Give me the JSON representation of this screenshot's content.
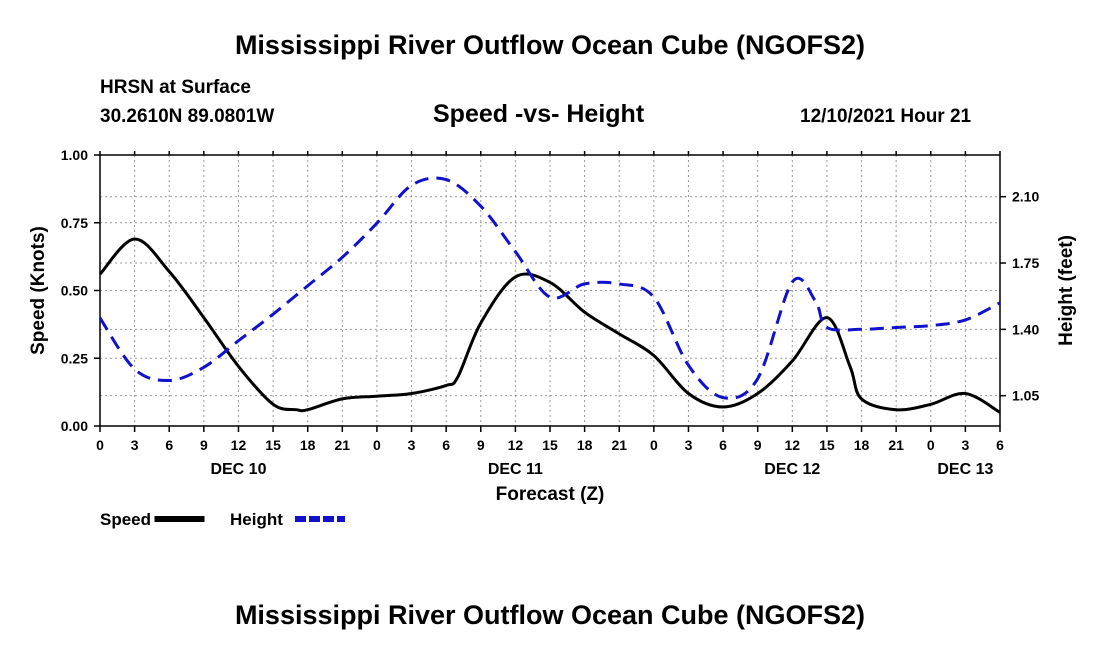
{
  "header": {
    "main_title": "Mississippi River Outflow Ocean Cube (NGOFS2)",
    "station": "HRSN at Surface",
    "coords": "30.2610N  89.0801W",
    "chart_title": "Speed -vs- Height",
    "datetime": "12/10/2021 Hour 21",
    "bottom_title": "Mississippi River Outflow Ocean Cube (NGOFS2)"
  },
  "chart_data": {
    "type": "line",
    "title": "Speed -vs- Height",
    "xlabel": "Forecast (Z)",
    "ylabel": "Speed (Knots)",
    "y2label": "Height (feet)",
    "xlim": [
      0,
      78
    ],
    "ylim": [
      0,
      1
    ],
    "y2lim": [
      0.89,
      2.32
    ],
    "x_ticks": [
      0,
      3,
      6,
      9,
      12,
      15,
      18,
      21,
      24,
      27,
      30,
      33,
      36,
      39,
      42,
      45,
      48,
      51,
      54,
      57,
      60,
      63,
      66,
      69,
      72,
      75,
      78
    ],
    "x_tick_labels": [
      "0",
      "3",
      "6",
      "9",
      "12",
      "15",
      "18",
      "21",
      "0",
      "3",
      "6",
      "9",
      "12",
      "15",
      "18",
      "21",
      "0",
      "3",
      "6",
      "9",
      "12",
      "15",
      "18",
      "21",
      "0",
      "3",
      "6"
    ],
    "y_ticks": [
      0,
      0.25,
      0.5,
      0.75,
      1.0
    ],
    "y_tick_labels": [
      "0.00",
      "0.25",
      "0.50",
      "0.75",
      "1.00"
    ],
    "y2_ticks": [
      1.05,
      1.4,
      1.75,
      2.1
    ],
    "y2_tick_labels": [
      "1.05",
      "1.40",
      "1.75",
      "2.10"
    ],
    "day_labels": [
      {
        "x": 12,
        "label": "DEC 10"
      },
      {
        "x": 36,
        "label": "DEC 11"
      },
      {
        "x": 60,
        "label": "DEC 12"
      },
      {
        "x": 75,
        "label": "DEC 13"
      }
    ],
    "grid": true,
    "legend": [
      {
        "name": "Speed",
        "color": "#000000",
        "style": "solid"
      },
      {
        "name": "Height",
        "color": "#1111cc",
        "style": "dashed"
      }
    ],
    "series": [
      {
        "name": "Speed",
        "axis": "left",
        "color": "#000000",
        "x": [
          0,
          3,
          6,
          9,
          12,
          15,
          17,
          18,
          21,
          24,
          27,
          30,
          31,
          33,
          36,
          39,
          42,
          45,
          48,
          51,
          54,
          57,
          60,
          63,
          65,
          66,
          69,
          72,
          75,
          78
        ],
        "values": [
          0.56,
          0.69,
          0.57,
          0.4,
          0.22,
          0.08,
          0.06,
          0.06,
          0.1,
          0.11,
          0.12,
          0.15,
          0.18,
          0.38,
          0.55,
          0.53,
          0.42,
          0.34,
          0.26,
          0.12,
          0.07,
          0.12,
          0.24,
          0.4,
          0.22,
          0.1,
          0.06,
          0.08,
          0.12,
          0.05
        ]
      },
      {
        "name": "Height",
        "axis": "right",
        "color": "#1111cc",
        "x": [
          0,
          3,
          6,
          9,
          12,
          15,
          18,
          21,
          24,
          27,
          30,
          33,
          36,
          39,
          42,
          45,
          48,
          51,
          54,
          57,
          60,
          62,
          63,
          66,
          69,
          72,
          75,
          78
        ],
        "values": [
          1.46,
          1.19,
          1.13,
          1.2,
          1.34,
          1.48,
          1.63,
          1.78,
          1.96,
          2.16,
          2.19,
          2.05,
          1.81,
          1.57,
          1.64,
          1.64,
          1.57,
          1.21,
          1.04,
          1.14,
          1.65,
          1.55,
          1.41,
          1.4,
          1.41,
          1.42,
          1.45,
          1.54
        ]
      }
    ]
  }
}
